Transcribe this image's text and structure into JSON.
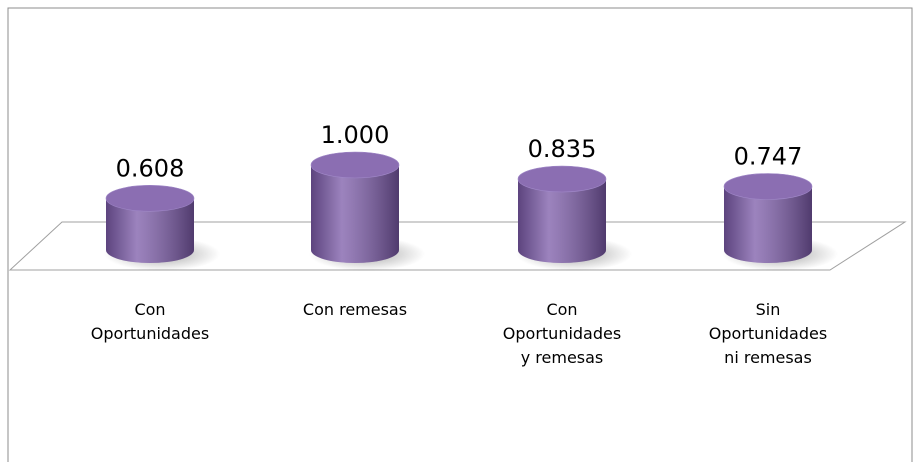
{
  "chart_data": {
    "type": "bar",
    "categories": [
      "Con Oportunidades",
      "Con remesas",
      "Con Oportunidades y remesas",
      "Sin Oportunidades ni remesas"
    ],
    "values": [
      0.608,
      1.0,
      0.835,
      0.747
    ],
    "value_labels": [
      "0.608",
      "1.000",
      "0.835",
      "0.747"
    ],
    "color": "#7b5aa8"
  }
}
